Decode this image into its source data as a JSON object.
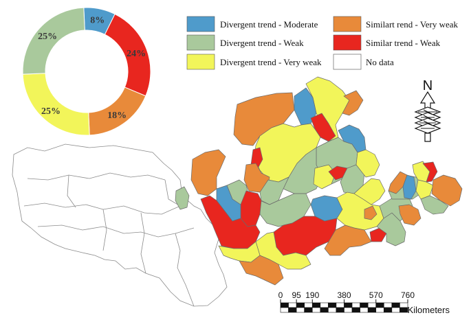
{
  "colors": {
    "divergent_moderate": "#4f9bcb",
    "divergent_weak": "#a9c99c",
    "divergent_very_weak": "#f2f55a",
    "similar_very_weak": "#e88a3a",
    "similar_weak": "#e8261f",
    "no_data": "#ffffff",
    "outline": "#6a6a6a"
  },
  "legend": [
    {
      "label": "Divergent trend - Moderate",
      "color_key": "divergent_moderate"
    },
    {
      "label": "Similart rend - Very weak",
      "color_key": "similar_very_weak"
    },
    {
      "label": "Divergent trend - Weak",
      "color_key": "divergent_weak"
    },
    {
      "label": "Similar trend - Weak",
      "color_key": "similar_weak"
    },
    {
      "label": "Divergent trend - Very weak",
      "color_key": "divergent_very_weak"
    },
    {
      "label": "No data",
      "color_key": "no_data"
    }
  ],
  "donut": [
    {
      "label": "8%",
      "value": 8,
      "color_key": "divergent_moderate"
    },
    {
      "label": "24%",
      "value": 24,
      "color_key": "similar_weak"
    },
    {
      "label": "18%",
      "value": 18,
      "color_key": "similar_very_weak"
    },
    {
      "label": "25%",
      "value": 25,
      "color_key": "divergent_very_weak"
    },
    {
      "label": "25%",
      "value": 25,
      "color_key": "divergent_weak"
    }
  ],
  "scale_bar": {
    "ticks": [
      "0",
      "95",
      "190",
      "380",
      "570",
      "760"
    ],
    "unit": "Kilometers"
  },
  "north_arrow": {
    "label": "N",
    "icon": "north-arrow-icon"
  }
}
